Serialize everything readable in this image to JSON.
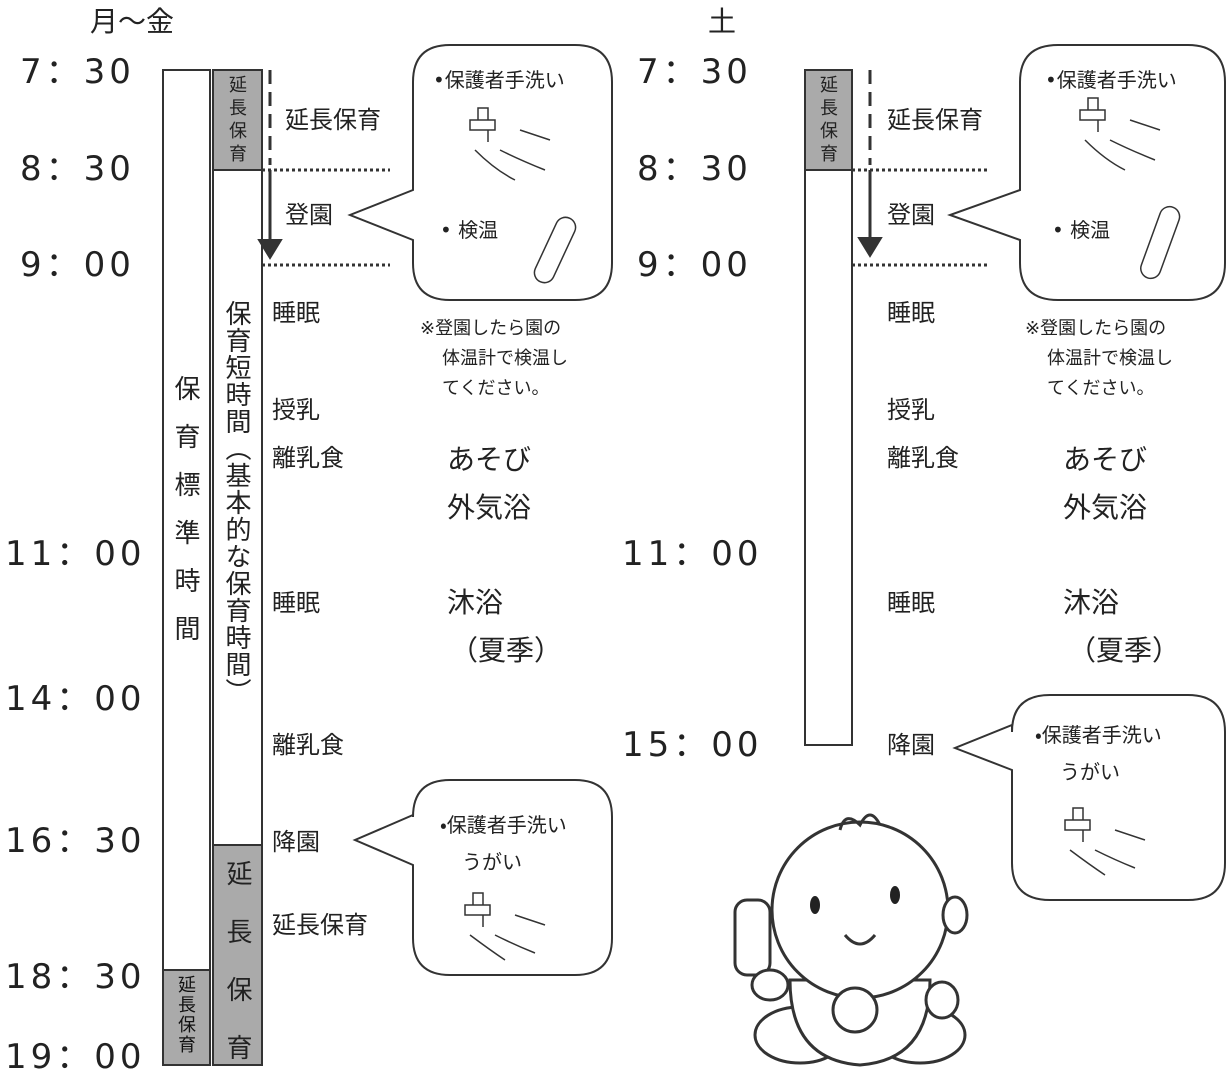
{
  "weekday": {
    "heading": "月〜金",
    "times": [
      "7：30",
      "8：30",
      "9：00",
      "11：00",
      "14：00",
      "16：30",
      "18：30",
      "19：00"
    ],
    "standard_bar": {
      "label": "保育標準時間",
      "extension": "延長保育"
    },
    "short_bar": {
      "top_extension": "延長保育",
      "label": "保育短時間（基本的な保育時間）",
      "bottom_extension": "延長保育"
    },
    "activities": [
      "延長保育",
      "登園",
      "睡眠",
      "授乳",
      "離乳食",
      "あそび",
      "外気浴",
      "睡眠",
      "沐浴",
      "（夏季）",
      "離乳食",
      "降園",
      "延長保育"
    ],
    "arrival_bubble": {
      "items": [
        "•保護者手洗い",
        "• 検温"
      ],
      "note": [
        "※登園したら園の",
        "体温計で検温し",
        "てください。"
      ]
    },
    "departure_bubble": {
      "items": [
        "・保護者手洗い",
        "うがい"
      ]
    }
  },
  "saturday": {
    "heading": "土",
    "times": [
      "7：30",
      "8：30",
      "9：00",
      "11：00",
      "15：00"
    ],
    "bar": {
      "extension": "延長保育"
    },
    "activities": [
      "延長保育",
      "登園",
      "睡眠",
      "授乳",
      "離乳食",
      "あそび",
      "外気浴",
      "睡眠",
      "沐浴",
      "（夏季）",
      "降園"
    ],
    "arrival_bubble": {
      "items": [
        "•保護者手洗い",
        "• 検温"
      ],
      "note": [
        "※登園したら園の",
        "体温計で検温し",
        "てください。"
      ]
    },
    "departure_bubble": {
      "items": [
        "・保護者手洗い",
        "うがい"
      ]
    }
  }
}
